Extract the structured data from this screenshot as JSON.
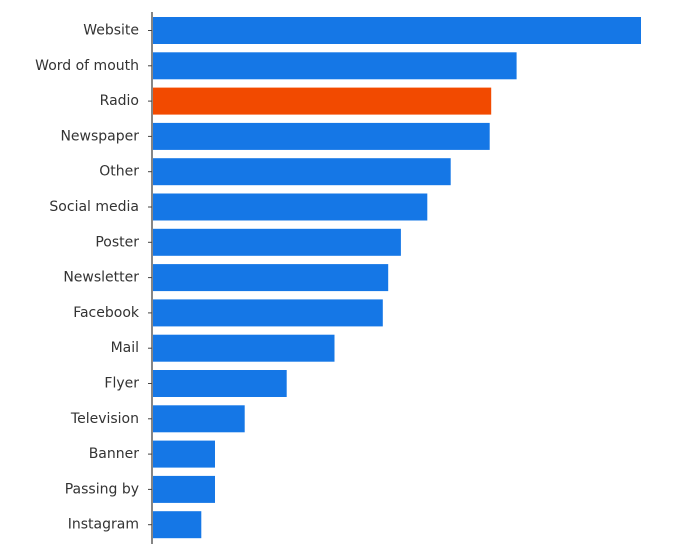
{
  "chart_data": {
    "type": "bar",
    "orientation": "horizontal",
    "title": "",
    "xlabel": "",
    "ylabel": "",
    "categories": [
      "Website",
      "Word of mouth",
      "Radio",
      "Newspaper",
      "Other",
      "Social media",
      "Poster",
      "Newsletter",
      "Facebook",
      "Mail",
      "Flyer",
      "Television",
      "Banner",
      "Passing by",
      "Instagram"
    ],
    "values": [
      100,
      74.5,
      69.3,
      69.0,
      61.0,
      56.2,
      50.8,
      48.2,
      47.1,
      37.2,
      27.4,
      18.8,
      12.7,
      12.7,
      9.9
    ],
    "xlim": [
      0,
      100
    ],
    "highlight_category": "Radio",
    "colors": {
      "bar": "#1577e6",
      "highlight": "#f24a00",
      "axis": "#444444",
      "label": "#333333"
    },
    "grid": false,
    "legend": "none",
    "x_axis_visible": false
  }
}
